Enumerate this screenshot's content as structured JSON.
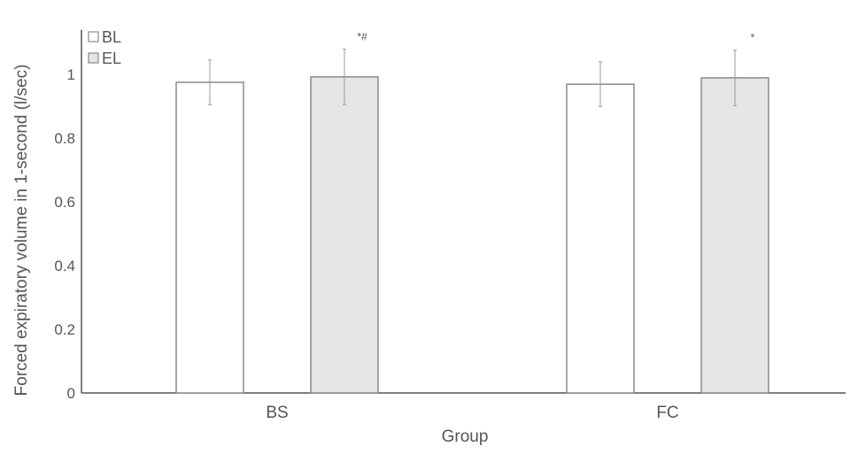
{
  "chart_data": {
    "type": "bar",
    "title": "",
    "xlabel": "Group",
    "ylabel": "Forced expiratory volume in 1-second (l/sec)",
    "categories": [
      "BS",
      "FC"
    ],
    "ylim": [
      0,
      1.14
    ],
    "yticks": [
      0,
      0.2,
      0.4,
      0.6,
      0.8,
      1
    ],
    "ytick_labels": [
      "0",
      "0.2",
      "0.4",
      "0.6",
      "0.8",
      "1"
    ],
    "grid": false,
    "legend_placement": "top-left",
    "series": [
      {
        "name": "BL",
        "values": [
          0.975,
          0.969
        ],
        "errors": [
          0.07,
          0.07
        ],
        "color": "#ffffff",
        "annotations": [
          "",
          ""
        ]
      },
      {
        "name": "EL",
        "values": [
          0.992,
          0.989
        ],
        "errors": [
          0.087,
          0.087
        ],
        "color": "#e6e6e6",
        "annotations": [
          "*#",
          "*"
        ]
      }
    ],
    "colors": {
      "axis": "#555555",
      "bar_edge": "#8a8a8a",
      "error_bar": "#999999"
    }
  }
}
